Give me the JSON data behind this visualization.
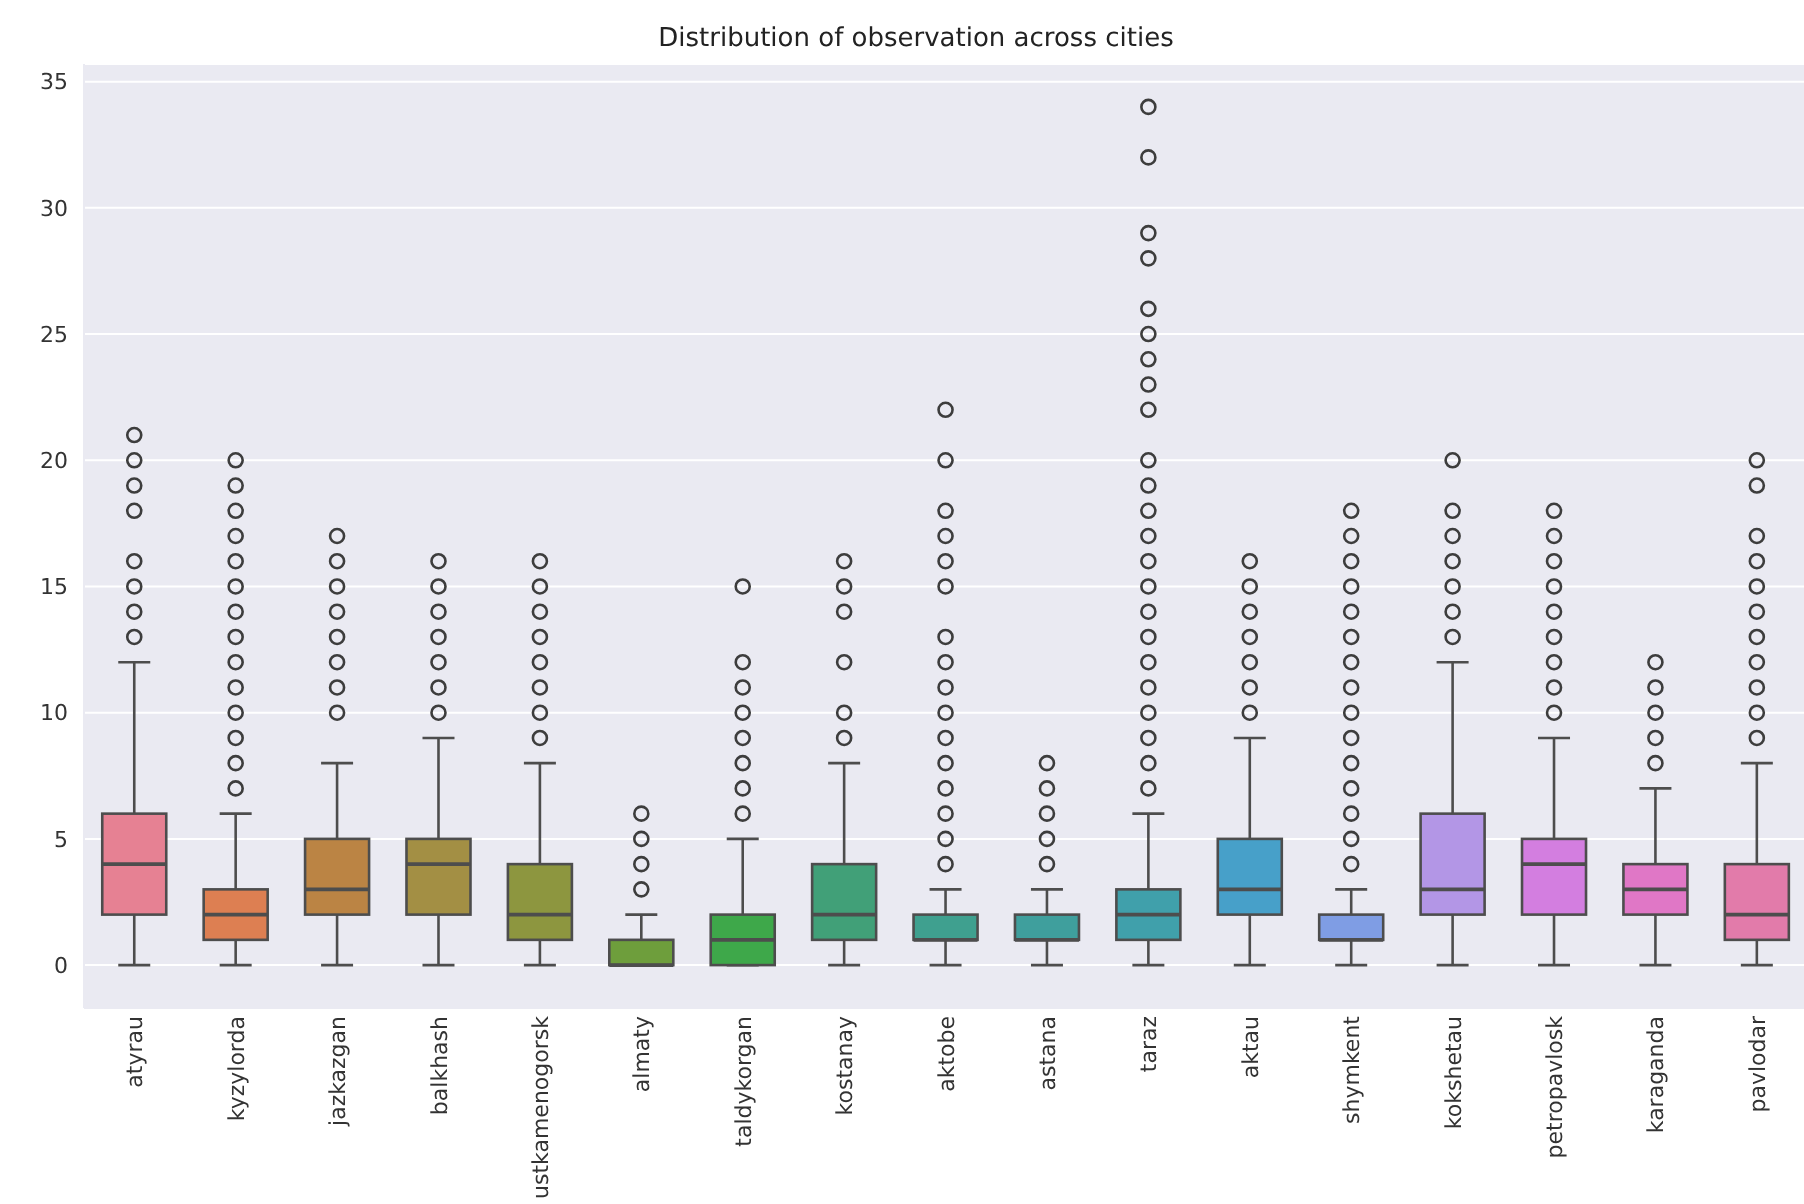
{
  "chart_data": {
    "type": "box",
    "title": "Distribution of observation across cities",
    "categories": [
      "atyrau",
      "kyzylorda",
      "jazkazgan",
      "balkhash",
      "ustkamenogorsk",
      "almaty",
      "taldykorgan",
      "kostanay",
      "aktobe",
      "astana",
      "taraz",
      "aktau",
      "shymkent",
      "kokshetau",
      "petropavlosk",
      "karaganda",
      "pavlodar"
    ],
    "colors": [
      "#e68193",
      "#dd7f52",
      "#bb8444",
      "#a38f44",
      "#8d963f",
      "#6e9e3c",
      "#3ea84a",
      "#41a078",
      "#3fa08f",
      "#3f9f9d",
      "#40a0ab",
      "#47a0c9",
      "#7f9de4",
      "#b396e6",
      "#d37ee0",
      "#e077c6",
      "#e27baa"
    ],
    "boxes": [
      {
        "low": 0,
        "q1": 2,
        "median": 4,
        "q3": 6,
        "high": 12,
        "outliers": [
          13,
          14,
          15,
          16,
          18,
          19,
          20,
          21
        ]
      },
      {
        "low": 0,
        "q1": 1,
        "median": 2,
        "q3": 3,
        "high": 6,
        "outliers": [
          7,
          8,
          9,
          10,
          11,
          12,
          13,
          14,
          15,
          16,
          17,
          18,
          19,
          20
        ]
      },
      {
        "low": 0,
        "q1": 2,
        "median": 3,
        "q3": 5,
        "high": 8,
        "outliers": [
          10,
          11,
          12,
          13,
          14,
          15,
          16,
          17
        ]
      },
      {
        "low": 0,
        "q1": 2,
        "median": 4,
        "q3": 5,
        "high": 9,
        "outliers": [
          10,
          11,
          12,
          13,
          14,
          15,
          16
        ]
      },
      {
        "low": 0,
        "q1": 1,
        "median": 2,
        "q3": 4,
        "high": 8,
        "outliers": [
          9,
          10,
          11,
          12,
          13,
          14,
          15,
          16
        ]
      },
      {
        "low": 0,
        "q1": 0,
        "median": 0,
        "q3": 1,
        "high": 2,
        "outliers": [
          3,
          4,
          5,
          6
        ]
      },
      {
        "low": 0,
        "q1": 0,
        "median": 1,
        "q3": 2,
        "high": 5,
        "outliers": [
          6,
          7,
          8,
          9,
          10,
          11,
          12,
          15
        ]
      },
      {
        "low": 0,
        "q1": 1,
        "median": 2,
        "q3": 4,
        "high": 8,
        "outliers": [
          9,
          10,
          12,
          14,
          15,
          16
        ]
      },
      {
        "low": 0,
        "q1": 1,
        "median": 1,
        "q3": 2,
        "high": 3,
        "outliers": [
          4,
          5,
          6,
          7,
          8,
          9,
          10,
          11,
          12,
          13,
          15,
          16,
          17,
          18,
          20,
          22
        ]
      },
      {
        "low": 0,
        "q1": 1,
        "median": 1,
        "q3": 2,
        "high": 3,
        "outliers": [
          4,
          5,
          6,
          7,
          8
        ]
      },
      {
        "low": 0,
        "q1": 1,
        "median": 2,
        "q3": 3,
        "high": 6,
        "outliers": [
          7,
          8,
          9,
          10,
          11,
          12,
          13,
          14,
          15,
          16,
          17,
          18,
          19,
          20,
          22,
          23,
          24,
          25,
          26,
          28,
          29,
          32,
          34
        ]
      },
      {
        "low": 0,
        "q1": 2,
        "median": 3,
        "q3": 5,
        "high": 9,
        "outliers": [
          10,
          11,
          12,
          13,
          14,
          15,
          16
        ]
      },
      {
        "low": 0,
        "q1": 1,
        "median": 1,
        "q3": 2,
        "high": 3,
        "outliers": [
          4,
          5,
          6,
          7,
          8,
          9,
          10,
          11,
          12,
          13,
          14,
          15,
          16,
          17,
          18
        ]
      },
      {
        "low": 0,
        "q1": 2,
        "median": 3,
        "q3": 6,
        "high": 12,
        "outliers": [
          13,
          14,
          15,
          16,
          17,
          18,
          20
        ]
      },
      {
        "low": 0,
        "q1": 2,
        "median": 4,
        "q3": 5,
        "high": 9,
        "outliers": [
          10,
          11,
          12,
          13,
          14,
          15,
          16,
          17,
          18
        ]
      },
      {
        "low": 0,
        "q1": 2,
        "median": 3,
        "q3": 4,
        "high": 7,
        "outliers": [
          8,
          9,
          10,
          11,
          12
        ]
      },
      {
        "low": 0,
        "q1": 1,
        "median": 2,
        "q3": 4,
        "high": 8,
        "outliers": [
          9,
          10,
          11,
          12,
          13,
          14,
          15,
          16,
          17,
          19,
          20
        ]
      }
    ],
    "ylim": [
      -1.7,
      35.7
    ],
    "yticks": [
      0,
      5,
      10,
      15,
      20,
      25,
      30,
      35
    ],
    "grid": "y"
  }
}
